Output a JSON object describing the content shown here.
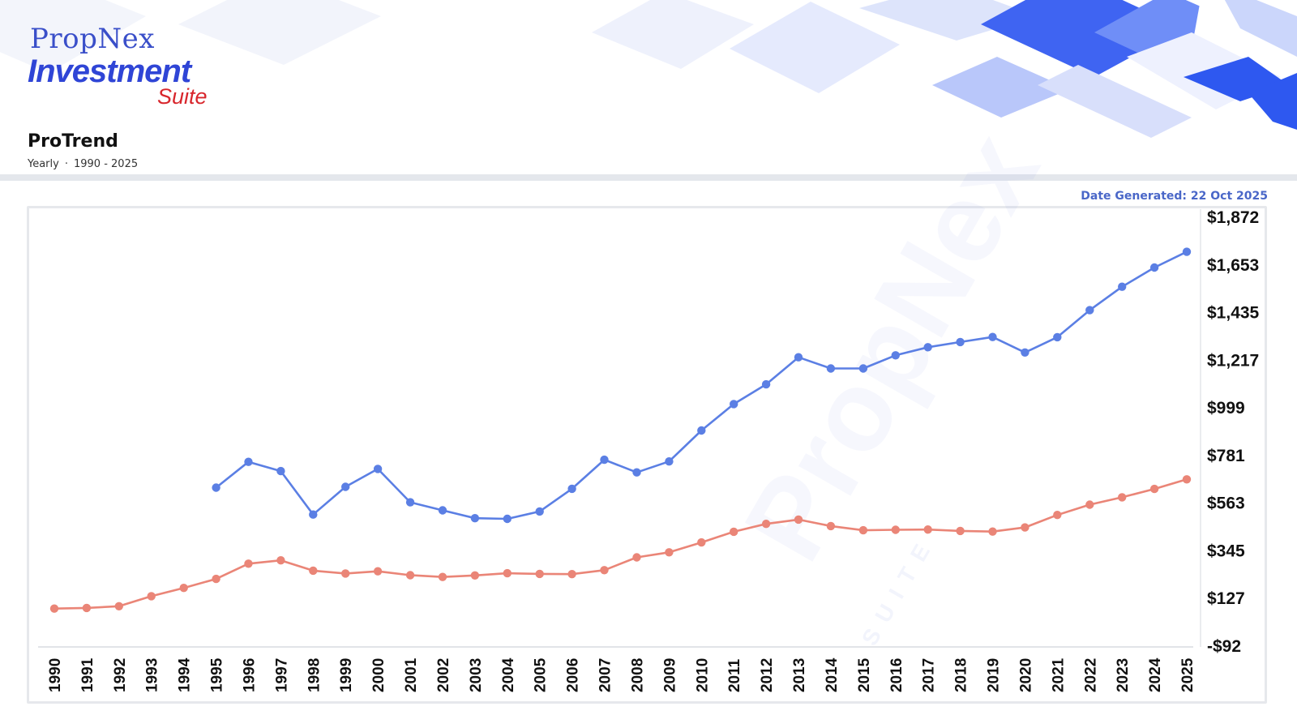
{
  "brand": {
    "name": "PropNex",
    "product": "Investment",
    "suffix": "Suite"
  },
  "page": {
    "title": "ProTrend",
    "frequency": "Yearly",
    "separator": "·",
    "range": "1990 - 2025"
  },
  "date_generated": "Date Generated: 22 Oct 2025",
  "colors": {
    "series_blue": "#5b7fe4",
    "series_red": "#ea8577",
    "brand_blue": "#2f45d6",
    "brand_red": "#d8262c"
  },
  "chart_data": {
    "type": "line",
    "x": [
      1990,
      1991,
      1992,
      1993,
      1994,
      1995,
      1996,
      1997,
      1998,
      1999,
      2000,
      2001,
      2002,
      2003,
      2004,
      2005,
      2006,
      2007,
      2008,
      2009,
      2010,
      2011,
      2012,
      2013,
      2014,
      2015,
      2016,
      2017,
      2018,
      2019,
      2020,
      2021,
      2022,
      2023,
      2024,
      2025
    ],
    "xticks": [
      "1990",
      "1991",
      "1992",
      "1993",
      "1994",
      "1995",
      "1996",
      "1997",
      "1998",
      "1999",
      "2000",
      "2001",
      "2002",
      "2003",
      "2004",
      "2005",
      "2006",
      "2007",
      "2008",
      "2009",
      "2010",
      "2011",
      "2012",
      "2013",
      "2014",
      "2015",
      "2016",
      "2017",
      "2018",
      "2019",
      "2020",
      "2021",
      "2022",
      "2023",
      "2024",
      "2025"
    ],
    "yticks": [
      "$1,872",
      "$1,653",
      "$1,435",
      "$1,217",
      "$999",
      "$781",
      "$563",
      "$345",
      "$127",
      "-$92"
    ],
    "ylim": [
      -92,
      1872
    ],
    "y_axis_side": "right",
    "grid": false,
    "series": [
      {
        "color": "#5b7fe4",
        "values": [
          null,
          null,
          null,
          null,
          null,
          630,
          748,
          706,
          507,
          634,
          716,
          563,
          526,
          490,
          487,
          521,
          625,
          758,
          700,
          750,
          892,
          1013,
          1103,
          1227,
          1176,
          1176,
          1236,
          1273,
          1297,
          1320,
          1249,
          1319,
          1443,
          1550,
          1638,
          1710
        ]
      },
      {
        "color": "#ea8577",
        "values": [
          76,
          79,
          87,
          133,
          171,
          212,
          282,
          297,
          250,
          237,
          247,
          229,
          221,
          228,
          238,
          235,
          234,
          252,
          311,
          334,
          379,
          428,
          464,
          484,
          454,
          435,
          437,
          438,
          432,
          429,
          448,
          505,
          552,
          586,
          624,
          668
        ]
      }
    ]
  }
}
